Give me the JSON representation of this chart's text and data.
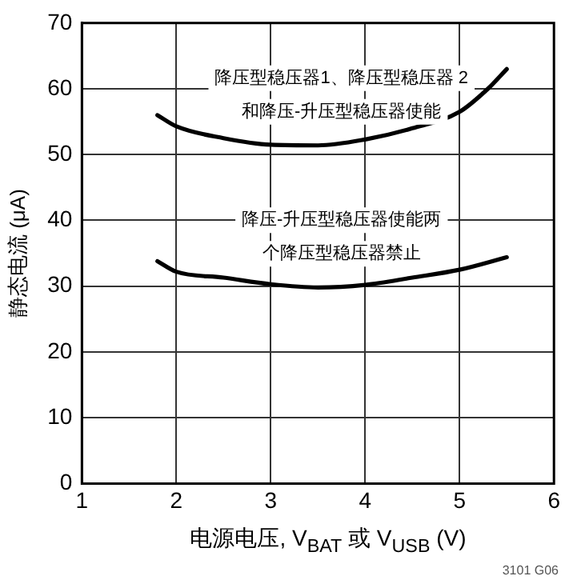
{
  "chart_data": {
    "type": "line",
    "xlabel": "电源电压, V$_{BAT}$ 或 V$_{USB}$ (V)",
    "ylabel": "静态电流 (μA)",
    "xlim": [
      1,
      6
    ],
    "xticks": [
      1,
      2,
      3,
      4,
      5,
      6
    ],
    "ylim": [
      0,
      70
    ],
    "yticks": [
      0,
      10,
      20,
      30,
      40,
      50,
      60,
      70
    ],
    "grid": true,
    "legend": false,
    "marker": "none",
    "line_style": "solid",
    "series": [
      {
        "name": "降压型稳压器1、降压型稳压器 2和降压-升压型稳压器使能",
        "color": "#000000",
        "x": [
          1.8,
          2,
          2.5,
          3,
          3.5,
          4,
          4.5,
          5,
          5.3,
          5.5
        ],
        "values": [
          56,
          54.3,
          52.5,
          51.5,
          51.4,
          52.3,
          54,
          56.5,
          60,
          63
        ]
      },
      {
        "name": "降压-升压型稳压器使能两个降压型稳压器禁止",
        "color": "#000000",
        "x": [
          1.8,
          2,
          2.5,
          3,
          3.5,
          4,
          4.5,
          5,
          5.5
        ],
        "values": [
          33.8,
          32.2,
          31.3,
          30.3,
          29.8,
          30.2,
          31.3,
          32.5,
          34.4
        ]
      }
    ],
    "annotations": [
      "3101 G06"
    ]
  }
}
